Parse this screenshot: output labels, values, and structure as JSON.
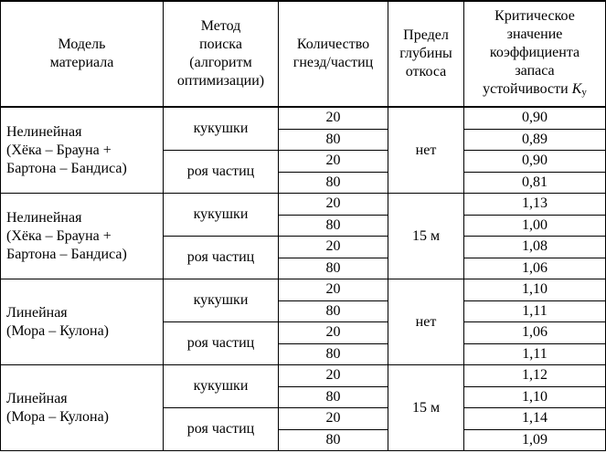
{
  "headers": {
    "model": [
      "Модель",
      "материала"
    ],
    "method": [
      "Метод",
      "поиска",
      "(алгоритм",
      "оптимизации)"
    ],
    "count": [
      "Количество",
      "гнезд/частиц"
    ],
    "depth": [
      "Предел",
      "глубины",
      "откоса"
    ],
    "k": [
      "Критическое",
      "значение",
      "коэффициента",
      "запаса",
      "устойчивости"
    ],
    "k_symbol": "K",
    "k_sub": "у"
  },
  "groups": [
    {
      "model": [
        "Нелинейная",
        "(Хёка – Брауна +",
        "Бартона – Бандиса)"
      ],
      "depth": "нет",
      "methods": [
        {
          "name": "кукушки",
          "rows": [
            [
              "20",
              "0,90"
            ],
            [
              "80",
              "0,89"
            ]
          ]
        },
        {
          "name": "роя частиц",
          "rows": [
            [
              "20",
              "0,90"
            ],
            [
              "80",
              "0,81"
            ]
          ]
        }
      ]
    },
    {
      "model": [
        "Нелинейная",
        "(Хёка – Брауна +",
        "Бартона – Бандиса)"
      ],
      "depth": "15 м",
      "methods": [
        {
          "name": "кукушки",
          "rows": [
            [
              "20",
              "1,13"
            ],
            [
              "80",
              "1,00"
            ]
          ]
        },
        {
          "name": "роя частиц",
          "rows": [
            [
              "20",
              "1,08"
            ],
            [
              "80",
              "1,06"
            ]
          ]
        }
      ]
    },
    {
      "model": [
        "Линейная",
        "(Мора – Кулона)"
      ],
      "depth": "нет",
      "methods": [
        {
          "name": "кукушки",
          "rows": [
            [
              "20",
              "1,10"
            ],
            [
              "80",
              "1,11"
            ]
          ]
        },
        {
          "name": "роя частиц",
          "rows": [
            [
              "20",
              "1,06"
            ],
            [
              "80",
              "1,11"
            ]
          ]
        }
      ]
    },
    {
      "model": [
        "Линейная",
        "(Мора – Кулона)"
      ],
      "depth": "15 м",
      "methods": [
        {
          "name": "кукушки",
          "rows": [
            [
              "20",
              "1,12"
            ],
            [
              "80",
              "1,10"
            ]
          ]
        },
        {
          "name": "роя частиц",
          "rows": [
            [
              "20",
              "1,14"
            ],
            [
              "80",
              "1,09"
            ]
          ]
        }
      ]
    }
  ]
}
